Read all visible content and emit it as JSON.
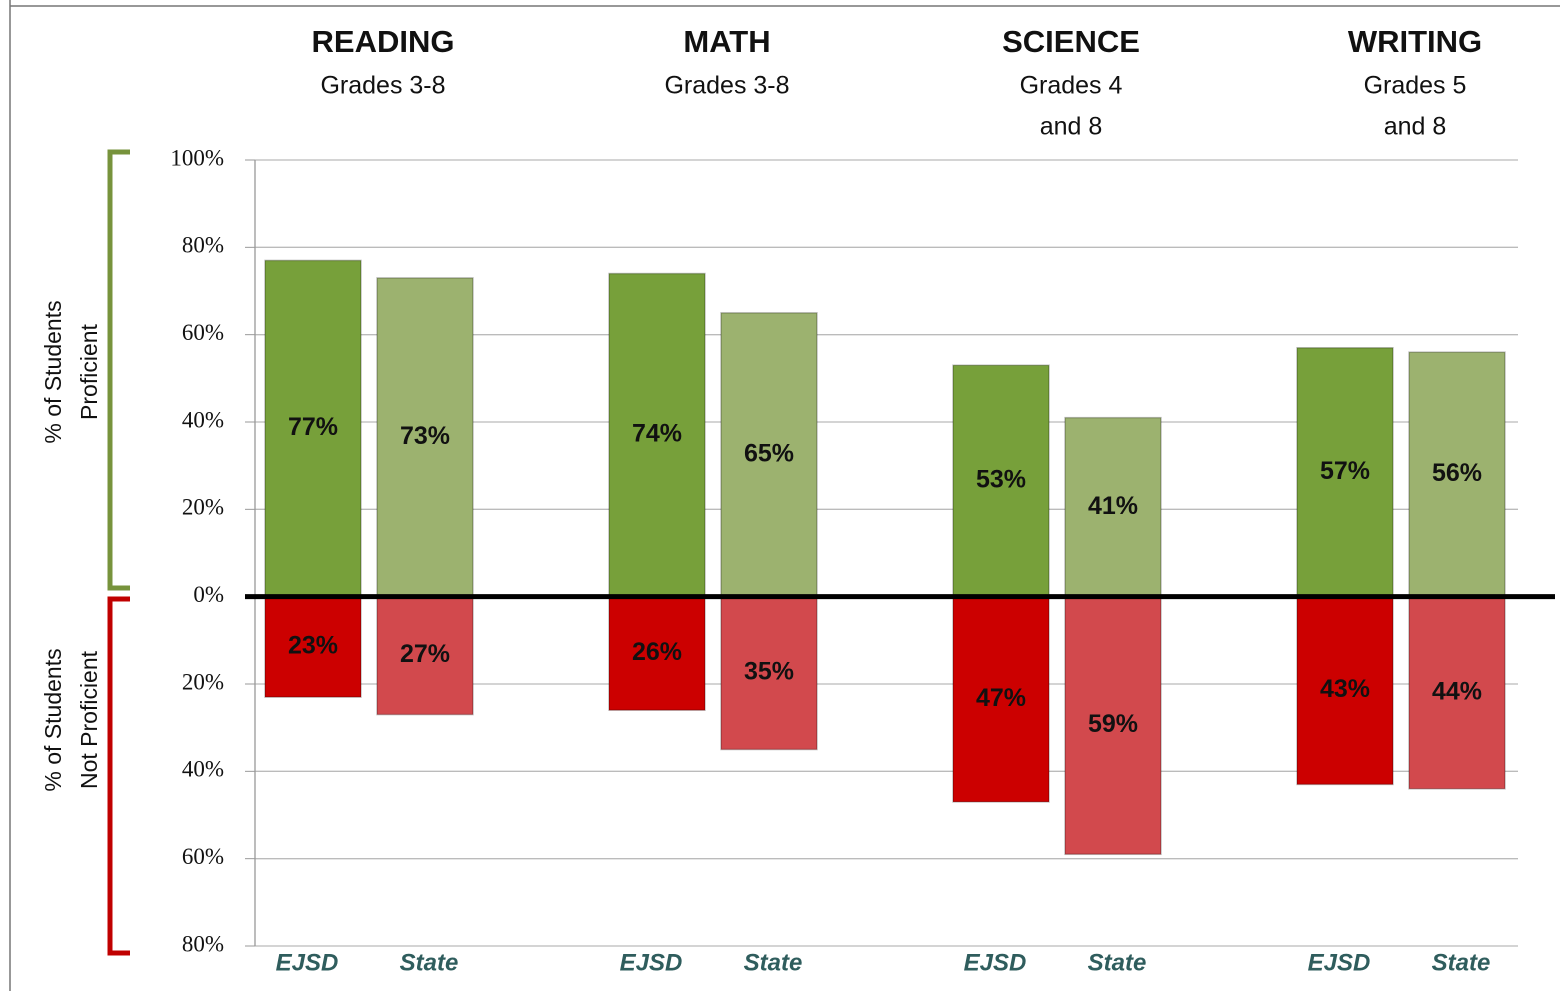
{
  "chart_data": {
    "type": "bar",
    "categories": [
      "READING",
      "MATH",
      "SCIENCE",
      "WRITING"
    ],
    "subtitles": [
      [
        "Grades 3-8"
      ],
      [
        "Grades 3-8"
      ],
      [
        "Grades 4",
        "and 8"
      ],
      [
        "Grades 5",
        "and 8"
      ]
    ],
    "bar_labels": [
      "EJSD",
      "State"
    ],
    "y_labels": [
      [
        "% of Students",
        "Proficient"
      ],
      [
        "% of Students",
        "Not Proficient"
      ]
    ],
    "series": [
      {
        "color": "#77a03a",
        "bar": 0,
        "values": [
          77,
          74,
          53,
          57
        ],
        "value_labels": [
          "77%",
          "74%",
          "53%",
          "57%"
        ]
      },
      {
        "color": "#9cb26f",
        "bar": 1,
        "values": [
          73,
          65,
          41,
          56
        ],
        "value_labels": [
          "73%",
          "65%",
          "41%",
          "56%"
        ]
      },
      {
        "color": "#cc0000",
        "bar": 0,
        "values": [
          -23,
          -26,
          -47,
          -43
        ],
        "value_labels": [
          "23%",
          "26%",
          "47%",
          "43%"
        ]
      },
      {
        "color": "#d2494d",
        "bar": 1,
        "values": [
          -27,
          -35,
          -59,
          -44
        ],
        "value_labels": [
          "27%",
          "35%",
          "59%",
          "44%"
        ]
      }
    ],
    "ylim": [
      -80,
      100
    ],
    "yticks": [
      {
        "value": 100,
        "label": "100%"
      },
      {
        "value": 80,
        "label": "80%"
      },
      {
        "value": 60,
        "label": "60%"
      },
      {
        "value": 40,
        "label": "40%"
      },
      {
        "value": 20,
        "label": "20%"
      },
      {
        "value": 0,
        "label": "0%"
      },
      {
        "value": -20,
        "label": "20%"
      },
      {
        "value": -40,
        "label": "40%"
      },
      {
        "value": -60,
        "label": "60%"
      },
      {
        "value": -80,
        "label": "80%"
      }
    ],
    "grid": true
  }
}
